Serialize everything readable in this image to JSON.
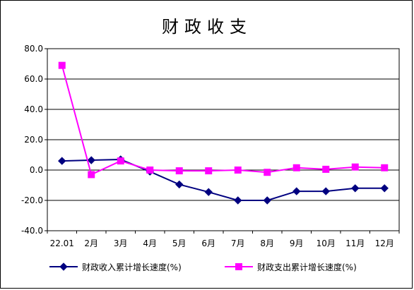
{
  "chart_data": {
    "type": "line",
    "title": "财政收支",
    "categories": [
      "22.01",
      "2月",
      "3月",
      "4月",
      "5月",
      "6月",
      "7月",
      "8月",
      "9月",
      "10月",
      "11月",
      "12月"
    ],
    "y_tick_labels": [
      "80.0",
      "60.0",
      "40.0",
      "20.0",
      "0.0",
      "-20.0",
      "-40.0"
    ],
    "ylim": [
      -40,
      80
    ],
    "grid": true,
    "legend_position": "bottom",
    "series": [
      {
        "name": "财政收入累计增长速度(%)",
        "color": "#000080",
        "marker": "diamond",
        "values": [
          6.0,
          6.5,
          7.0,
          -1.0,
          -9.5,
          -14.5,
          -20.0,
          -20.0,
          -14.0,
          -14.0,
          -12.0,
          -12.0
        ]
      },
      {
        "name": "财政支出累计增长速度(%)",
        "color": "#ff00ff",
        "marker": "square",
        "values": [
          69.0,
          -3.0,
          6.0,
          0.0,
          -0.5,
          -0.5,
          0.0,
          -1.5,
          1.5,
          0.5,
          2.0,
          1.5
        ]
      }
    ]
  }
}
